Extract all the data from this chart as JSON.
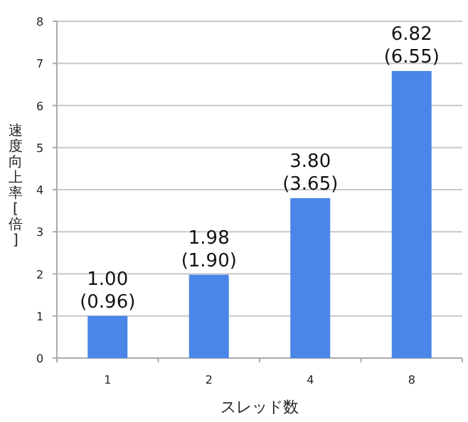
{
  "chart_data": {
    "type": "bar",
    "xlabel": "スレッド数",
    "ylabel": "速度向上率[倍]",
    "categories": [
      "1",
      "2",
      "4",
      "8"
    ],
    "values": [
      1.0,
      1.98,
      3.8,
      6.82
    ],
    "value_labels": [
      "1.00\n(0.96)",
      "1.98\n(1.90)",
      "3.80\n(3.65)",
      "6.82\n(6.55)"
    ],
    "color": "#4a86e8",
    "ylim": [
      0,
      8
    ],
    "yticks": [
      0,
      1,
      2,
      3,
      4,
      5,
      6,
      7,
      8
    ],
    "grid": "y"
  }
}
